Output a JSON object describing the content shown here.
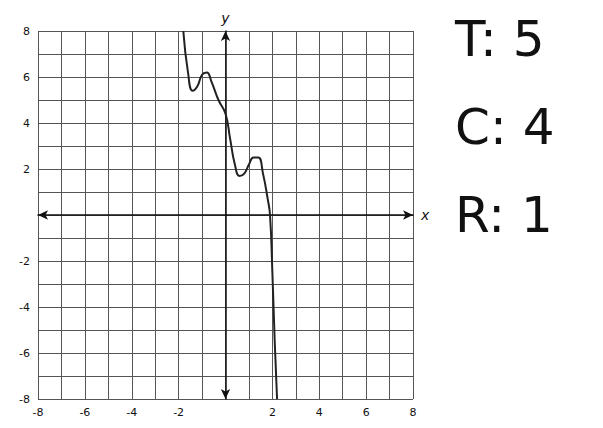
{
  "chart_data": {
    "type": "line",
    "x": [
      -1.8,
      -1.6,
      -1.4,
      -1.2,
      -1.0,
      -0.8,
      -0.6,
      -0.3,
      0,
      0.2,
      0.4,
      0.6,
      0.8,
      1.0,
      1.2,
      1.4,
      1.6,
      1.8,
      1.9,
      2.0,
      2.1,
      2.2
    ],
    "values": [
      8,
      6.2,
      5.4,
      5.6,
      6.1,
      6.2,
      5.8,
      5.0,
      4.4,
      3.3,
      2.2,
      1.7,
      1.8,
      2.2,
      2.5,
      2.5,
      1.8,
      0.7,
      0,
      -2.5,
      -5.5,
      -8
    ],
    "color": "#222222",
    "x_label": "x",
    "y_label": "y",
    "xlim": [
      -8,
      8
    ],
    "ylim": [
      -8,
      8
    ],
    "xticks": [
      -8,
      -6,
      -4,
      -2,
      2,
      4,
      6,
      8
    ],
    "yticks": [
      -8,
      -6,
      -4,
      -2,
      2,
      4,
      6,
      8
    ],
    "grid": true,
    "annotations": [
      "T: 5",
      "C: 4",
      "R: 1"
    ]
  }
}
